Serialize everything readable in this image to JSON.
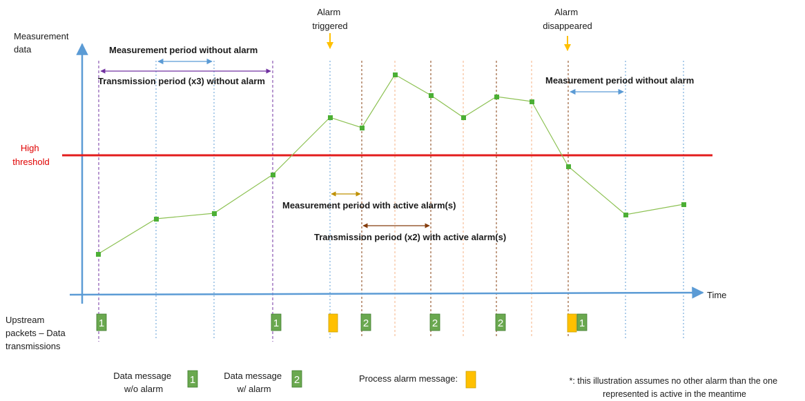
{
  "labels": {
    "measurement_data": [
      "Measurement",
      "data"
    ],
    "time": "Time",
    "high_threshold": [
      "High",
      "threshold"
    ],
    "alarm_triggered": [
      "Alarm",
      "triggered"
    ],
    "alarm_disappeared": [
      "Alarm",
      "disappeared"
    ],
    "measurement_period_without_alarm": "Measurement period without alarm",
    "transmission_period_x3": "Transmission period (x3) without alarm",
    "measurement_period_with_active_alarm": "Measurement period with active alarm(s)",
    "transmission_period_x2": "Transmission period (x2) with active alarm(s)",
    "upstream_packets": [
      "Upstream",
      "packets – Data",
      "transmissions"
    ],
    "legend_data_wo_alarm": [
      "Data message",
      "w/o alarm"
    ],
    "legend_data_w_alarm": [
      "Data message",
      "w/ alarm"
    ],
    "legend_process_alarm": "Process alarm message:",
    "footnote": [
      "*: this illustration assumes no other alarm than the one",
      "represented is active in the meantime"
    ]
  },
  "packet_labels": {
    "data_wo_alarm": "1",
    "data_w_alarm": "2"
  },
  "colors": {
    "axis": "#5b9bd5",
    "threshold": "#e31b1b",
    "curve": "#8cc152",
    "marker": "#4caf35",
    "packet_green": "#6aa84f",
    "packet_orange": "#ffc000",
    "purple": "#7030a0",
    "blue_dot": "#5b9bd5",
    "brown": "#843c0c",
    "gold": "#bf9000",
    "orange_dot": "#f4b183"
  }
}
